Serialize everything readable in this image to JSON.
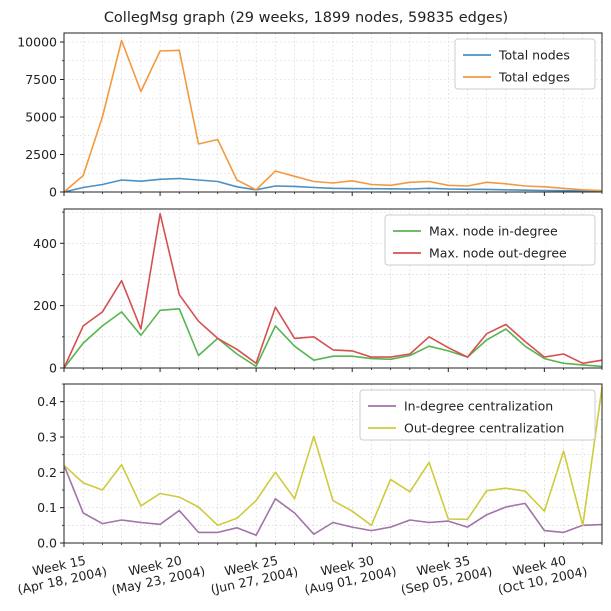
{
  "title": "CollegMsg graph (29 weeks, 1899 nodes, 59835 edges)",
  "colors": {
    "blue": "#4a90c4",
    "orange": "#f39a41",
    "green": "#58b551",
    "red": "#d6504f",
    "purple": "#a273a8",
    "olive": "#cfcb3d",
    "grid": "#cccccc"
  },
  "x_ticks": [
    {
      "week": 15,
      "line1": "Week 15",
      "line2": "(Apr 18, 2004)"
    },
    {
      "week": 20,
      "line1": "Week 20",
      "line2": "(May 23, 2004)"
    },
    {
      "week": 25,
      "line1": "Week 25",
      "line2": "(Jun 27, 2004)"
    },
    {
      "week": 30,
      "line1": "Week 30",
      "line2": "(Aug 01, 2004)"
    },
    {
      "week": 35,
      "line1": "Week 35",
      "line2": "(Sep 05, 2004)"
    },
    {
      "week": 40,
      "line1": "Week 40",
      "line2": "(Oct 10, 2004)"
    }
  ],
  "chart_data": [
    {
      "type": "line",
      "x": [
        15,
        16,
        17,
        18,
        19,
        20,
        21,
        22,
        23,
        24,
        25,
        26,
        27,
        28,
        29,
        30,
        31,
        32,
        33,
        34,
        35,
        36,
        37,
        38,
        39,
        40,
        41,
        42,
        43
      ],
      "xlim": [
        15,
        43
      ],
      "ylim": [
        0,
        10600
      ],
      "yticks": [
        0,
        2500,
        5000,
        7500,
        10000
      ],
      "ytick_labels": [
        "0",
        "2500",
        "5000",
        "7500",
        "10000"
      ],
      "legend": "top-right",
      "series": [
        {
          "name": "Total nodes",
          "color": "#4a90c4",
          "values": [
            0,
            300,
            500,
            800,
            720,
            850,
            900,
            800,
            700,
            350,
            150,
            400,
            370,
            300,
            250,
            230,
            220,
            210,
            200,
            250,
            200,
            180,
            170,
            150,
            120,
            100,
            90,
            80,
            70
          ]
        },
        {
          "name": "Total edges",
          "color": "#f39a41",
          "values": [
            0,
            1100,
            5000,
            10100,
            6700,
            9400,
            9450,
            3200,
            3500,
            800,
            150,
            1400,
            1050,
            700,
            600,
            750,
            500,
            450,
            650,
            700,
            450,
            400,
            650,
            550,
            400,
            350,
            250,
            150,
            100
          ]
        }
      ]
    },
    {
      "type": "line",
      "x": [
        15,
        16,
        17,
        18,
        19,
        20,
        21,
        22,
        23,
        24,
        25,
        26,
        27,
        28,
        29,
        30,
        31,
        32,
        33,
        34,
        35,
        36,
        37,
        38,
        39,
        40,
        41,
        42,
        43
      ],
      "xlim": [
        15,
        43
      ],
      "ylim": [
        0,
        510
      ],
      "yticks": [
        0,
        200,
        400
      ],
      "ytick_labels": [
        "0",
        "200",
        "400"
      ],
      "legend": "top-right",
      "series": [
        {
          "name": "Max. node in-degree",
          "color": "#58b551",
          "values": [
            0,
            80,
            135,
            180,
            105,
            185,
            190,
            40,
            95,
            45,
            5,
            135,
            70,
            25,
            38,
            38,
            30,
            28,
            40,
            70,
            55,
            35,
            90,
            125,
            70,
            30,
            15,
            10,
            5
          ]
        },
        {
          "name": "Max. node out-degree",
          "color": "#d6504f",
          "values": [
            0,
            135,
            180,
            280,
            125,
            495,
            235,
            150,
            95,
            60,
            15,
            195,
            95,
            100,
            58,
            55,
            35,
            35,
            45,
            100,
            65,
            35,
            110,
            140,
            85,
            35,
            45,
            15,
            25
          ]
        }
      ]
    },
    {
      "type": "line",
      "x": [
        15,
        16,
        17,
        18,
        19,
        20,
        21,
        22,
        23,
        24,
        25,
        26,
        27,
        28,
        29,
        30,
        31,
        32,
        33,
        34,
        35,
        36,
        37,
        38,
        39,
        40,
        41,
        42,
        43
      ],
      "xlim": [
        15,
        43
      ],
      "ylim": [
        0,
        0.45
      ],
      "yticks": [
        0,
        0.1,
        0.2,
        0.3,
        0.4
      ],
      "ytick_labels": [
        "0.0",
        "0.1",
        "0.2",
        "0.3",
        "0.4"
      ],
      "legend": "top-right",
      "series": [
        {
          "name": "In-degree centralization",
          "color": "#a273a8",
          "values": [
            0.22,
            0.085,
            0.055,
            0.065,
            0.058,
            0.053,
            0.092,
            0.03,
            0.03,
            0.043,
            0.022,
            0.125,
            0.085,
            0.025,
            0.058,
            0.045,
            0.035,
            0.045,
            0.065,
            0.058,
            0.062,
            0.045,
            0.08,
            0.102,
            0.112,
            0.035,
            0.03,
            0.05,
            0.052
          ]
        },
        {
          "name": "Out-degree centralization",
          "color": "#cfcb3d",
          "values": [
            0.22,
            0.17,
            0.15,
            0.222,
            0.105,
            0.14,
            0.13,
            0.102,
            0.05,
            0.07,
            0.12,
            0.2,
            0.125,
            0.302,
            0.12,
            0.09,
            0.05,
            0.18,
            0.145,
            0.228,
            0.068,
            0.067,
            0.148,
            0.155,
            0.147,
            0.09,
            0.26,
            0.05,
            0.44
          ]
        }
      ]
    }
  ]
}
